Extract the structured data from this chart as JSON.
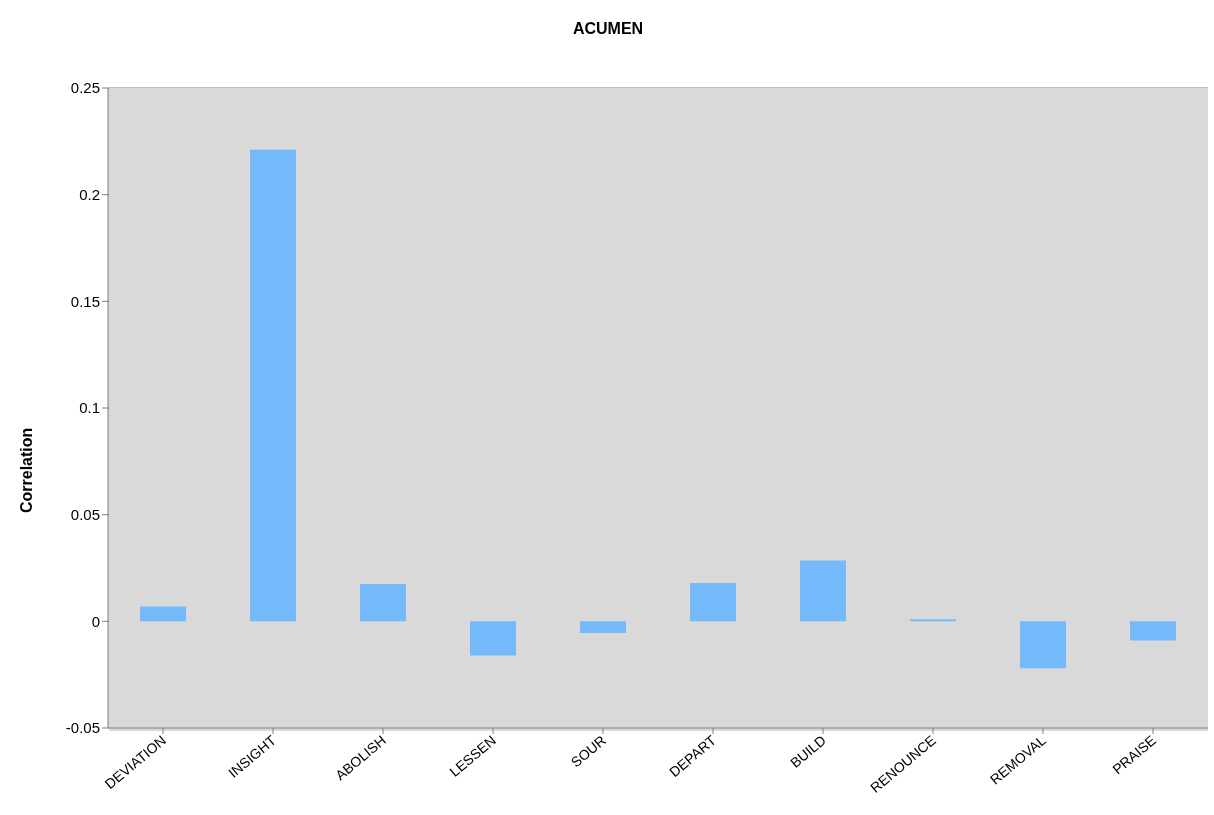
{
  "chart_data": {
    "type": "bar",
    "title": "ACUMEN",
    "ylabel": "Correlation",
    "categories": [
      "DEVIATION",
      "INSIGHT",
      "ABOLISH",
      "LESSEN",
      "SOUR",
      "DEPART",
      "BUILD",
      "RENOUNCE",
      "REMOVAL",
      "PRAISE"
    ],
    "values": [
      0.007,
      0.221,
      0.0175,
      -0.016,
      -0.0055,
      0.018,
      0.0285,
      0.001,
      -0.022,
      -0.009
    ],
    "color": "#74b9f9",
    "ylim": [
      -0.05,
      0.25
    ],
    "yticks": [
      -0.05,
      0,
      0.05,
      0.1,
      0.15,
      0.2,
      0.25
    ],
    "grid": "y",
    "legend": false
  }
}
